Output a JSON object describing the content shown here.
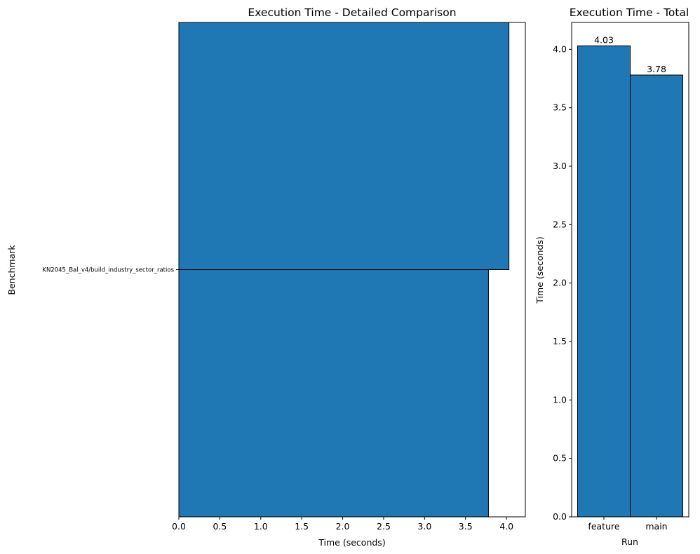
{
  "chart_data": [
    {
      "type": "bar",
      "orientation": "horizontal",
      "title": "Execution Time - Detailed Comparison",
      "xlabel": "Time (seconds)",
      "ylabel": "Benchmark",
      "categories": [
        "KN2045_Bal_v4/build_industry_sector_ratios"
      ],
      "series": [
        {
          "values": [
            4.03
          ]
        },
        {
          "values": [
            3.78
          ]
        }
      ],
      "xlim": [
        0,
        4.23
      ],
      "xticks": [
        "0.0",
        "0.5",
        "1.0",
        "1.5",
        "2.0",
        "2.5",
        "3.0",
        "3.5",
        "4.0"
      ],
      "grid": false,
      "color": "#1f77b4"
    },
    {
      "type": "bar",
      "title": "Execution Time - Total",
      "xlabel": "Run",
      "ylabel": "Time (seconds)",
      "categories": [
        "feature",
        "main"
      ],
      "values": [
        4.03,
        3.78
      ],
      "value_labels": [
        "4.03",
        "3.78"
      ],
      "ylim": [
        0,
        4.23
      ],
      "yticks": [
        "0.0",
        "0.5",
        "1.0",
        "1.5",
        "2.0",
        "2.5",
        "3.0",
        "3.5",
        "4.0"
      ],
      "grid": false,
      "color": "#1f77b4"
    }
  ]
}
